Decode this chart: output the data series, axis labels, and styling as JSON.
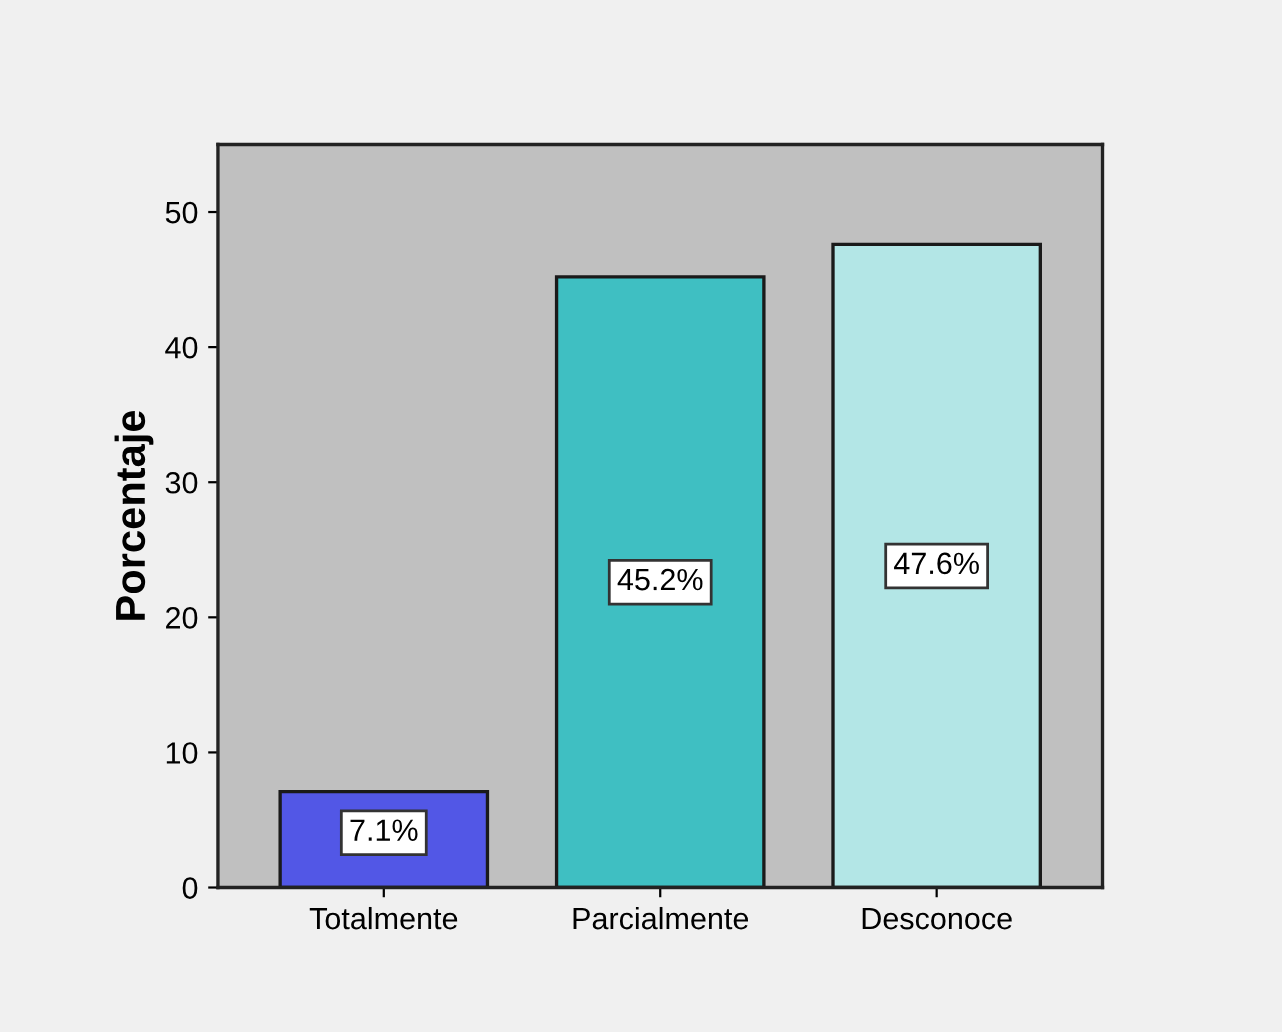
{
  "chart_data": {
    "type": "bar",
    "ylabel": "Porcentaje",
    "categories": [
      "Totalmente",
      "Parcialmente",
      "Desconoce"
    ],
    "values": [
      7.1,
      45.2,
      47.6
    ],
    "value_labels": [
      "7.1%",
      "45.2%",
      "47.6%"
    ],
    "colors": [
      "#5257e6",
      "#3fbfc2",
      "#b3e6e6"
    ],
    "ylim": [
      0,
      55
    ],
    "yticks": [
      0,
      10,
      20,
      30,
      40,
      50
    ],
    "grid": false,
    "legend": false
  }
}
